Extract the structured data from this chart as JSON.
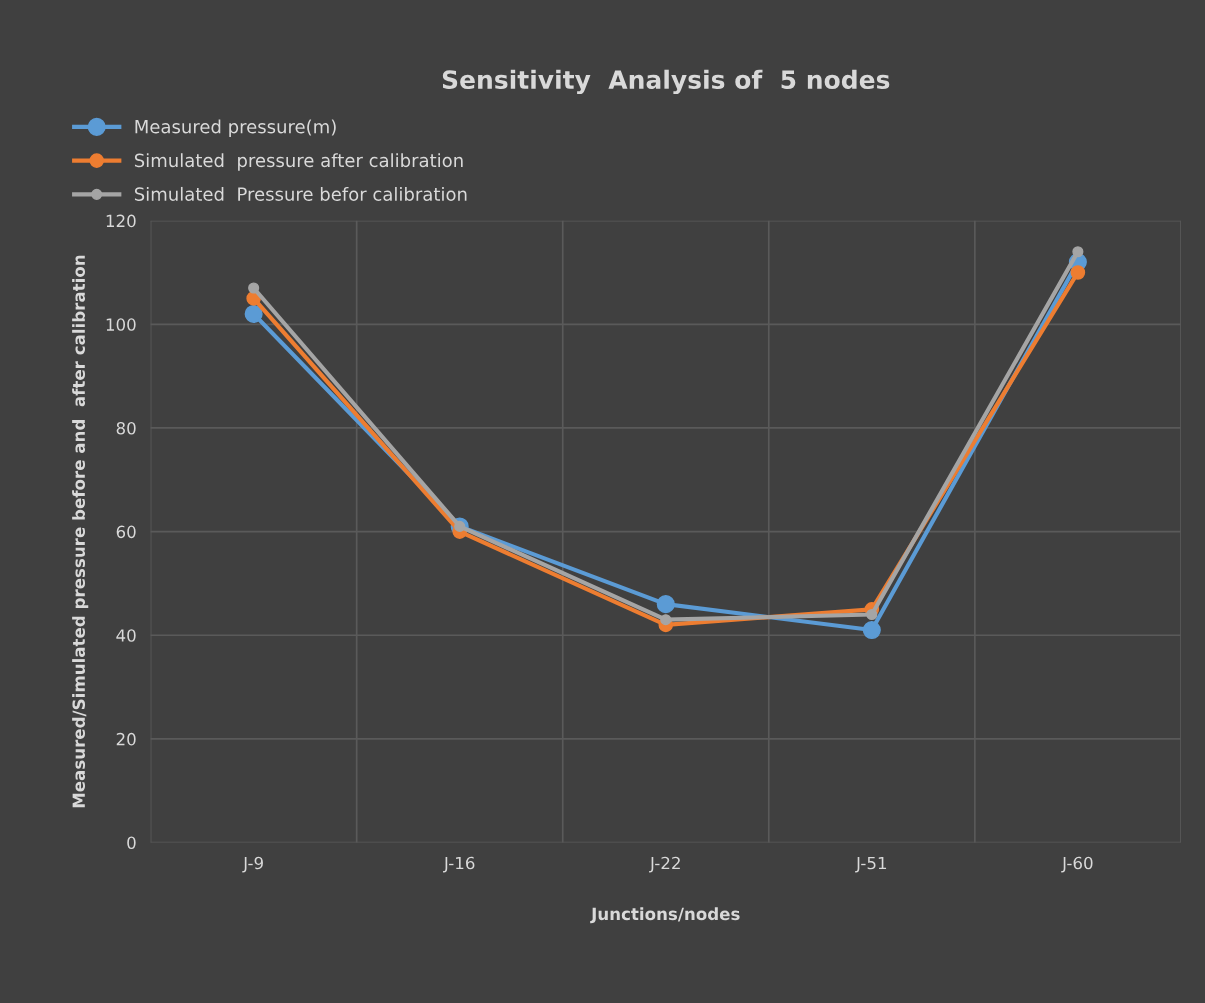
{
  "chart_data": {
    "type": "line",
    "title": "Sensitivity  Analysis of  5 nodes",
    "xlabel": "Junctions/nodes",
    "ylabel": "Measured/Simulated pressure before and  after calibration",
    "categories": [
      "J-9",
      "J-16",
      "J-22",
      "J-51",
      "J-60"
    ],
    "series": [
      {
        "name": "Measured pressure(m)",
        "color": "#5b9bd5",
        "values": [
          102,
          61,
          46,
          41,
          112
        ]
      },
      {
        "name": "Simulated  pressure after calibration",
        "color": "#ed7d31",
        "values": [
          105,
          60,
          42,
          45,
          110
        ]
      },
      {
        "name": "Simulated  Pressure befor calibration",
        "color": "#a5a5a5",
        "values": [
          107,
          61,
          43,
          44,
          114
        ]
      }
    ],
    "ylim": [
      0,
      120
    ],
    "yticks": [
      0,
      20,
      40,
      60,
      80,
      100,
      120
    ],
    "grid": true,
    "legend": "top left",
    "marker": "circle",
    "line_style": "solid"
  }
}
